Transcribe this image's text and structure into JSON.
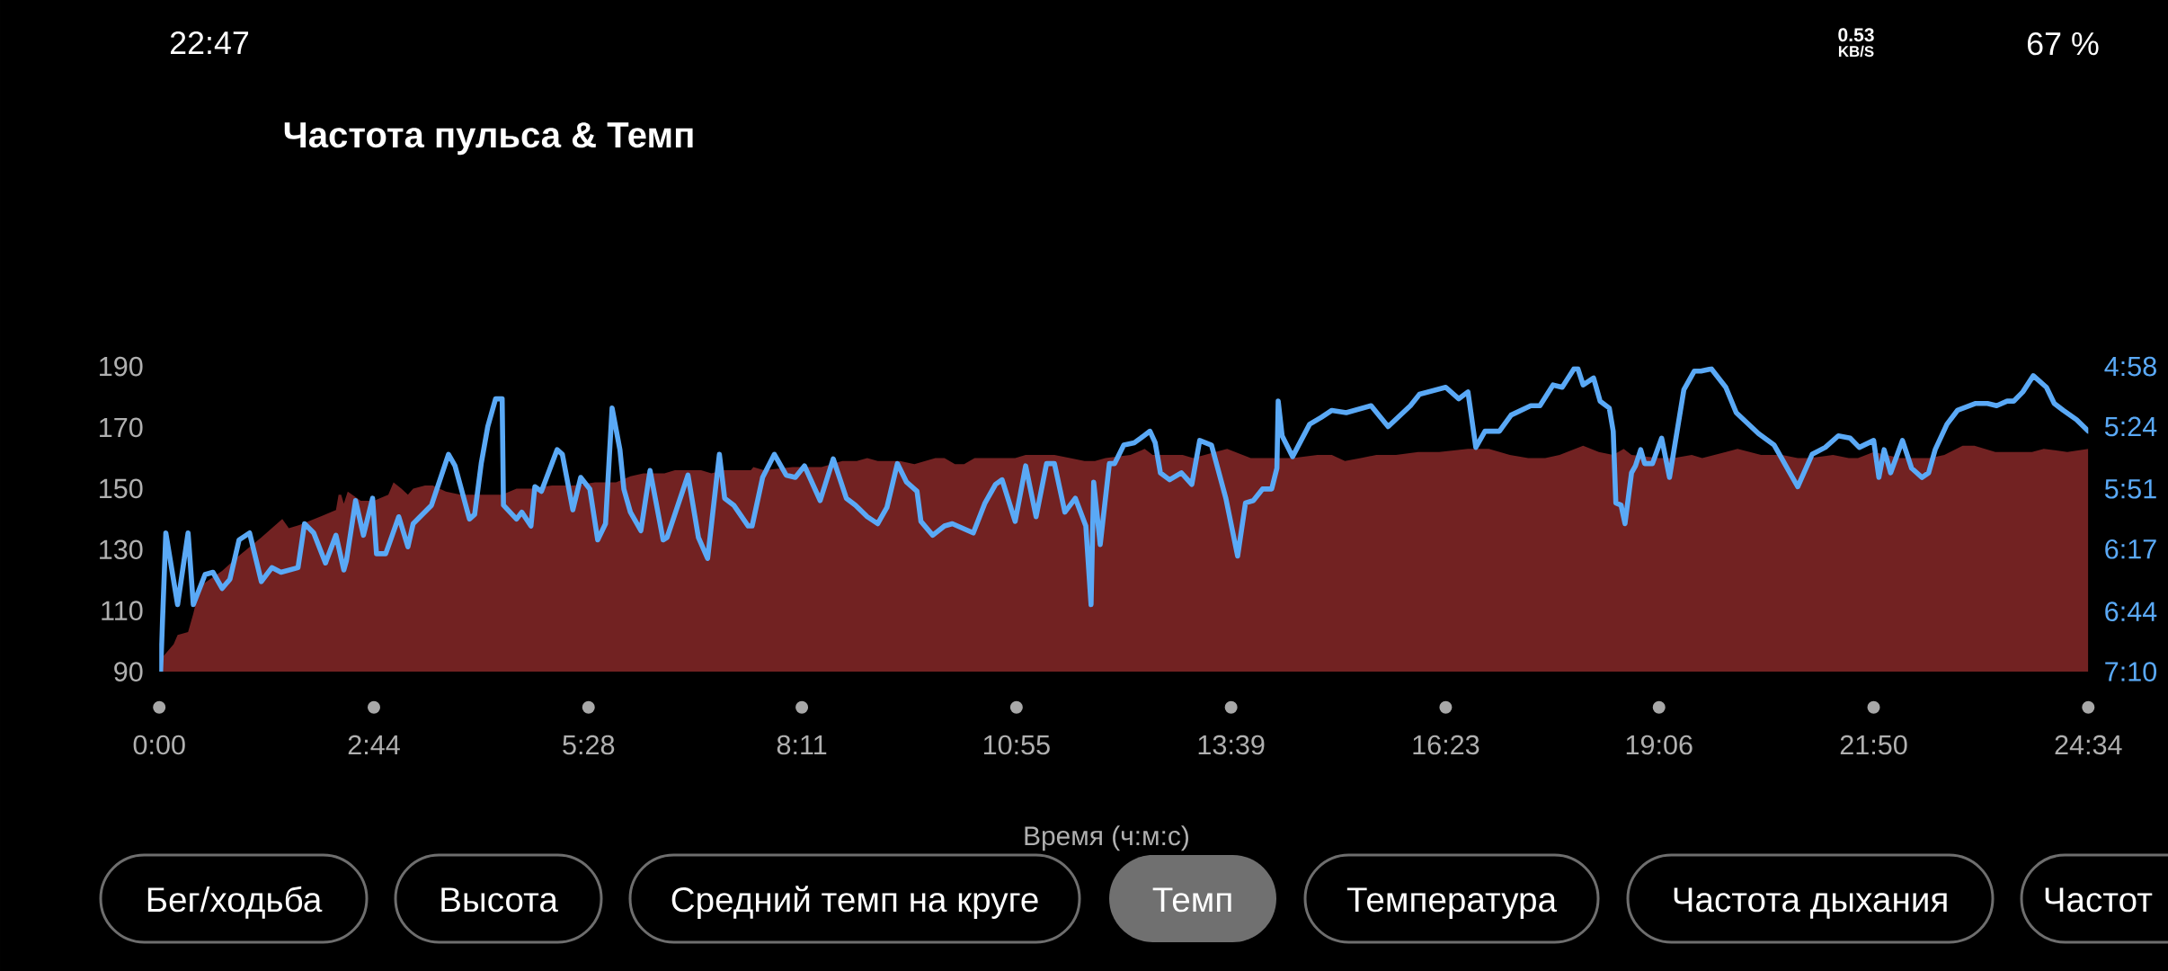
{
  "chart_data": {
    "type": "area",
    "title": "Частота пульса & Темп",
    "xlabel": "Время (ч:м:с)",
    "xlim": [
      0,
      1474
    ],
    "xticks": [
      {
        "value": 0,
        "label": "0:00"
      },
      {
        "value": 164,
        "label": "2:44"
      },
      {
        "value": 328,
        "label": "5:28"
      },
      {
        "value": 491,
        "label": "8:11"
      },
      {
        "value": 655,
        "label": "10:55"
      },
      {
        "value": 819,
        "label": "13:39"
      },
      {
        "value": 983,
        "label": "16:23"
      },
      {
        "value": 1146,
        "label": "19:06"
      },
      {
        "value": 1310,
        "label": "21:50"
      },
      {
        "value": 1474,
        "label": "24:34"
      }
    ],
    "ylim": [
      90,
      190
    ],
    "yticks": [
      90,
      110,
      130,
      150,
      170,
      190
    ],
    "y2lim": [
      430,
      298
    ],
    "y2ticks": [
      {
        "value": 298,
        "label": "4:58"
      },
      {
        "value": 324,
        "label": "5:24"
      },
      {
        "value": 351,
        "label": "5:51"
      },
      {
        "value": 377,
        "label": "6:17"
      },
      {
        "value": 404,
        "label": "6:44"
      },
      {
        "value": 430,
        "label": "7:10"
      }
    ],
    "series": [
      {
        "color": "#722222",
        "x": [
          1,
          11,
          14,
          22,
          26,
          31,
          48,
          61,
          78,
          94,
          99,
          107,
          124,
          135,
          137,
          139,
          141,
          144,
          154,
          164,
          175,
          179,
          185,
          190,
          194,
          203,
          209,
          219,
          230,
          246,
          262,
          273,
          284,
          300,
          317,
          333,
          349,
          360,
          370,
          386,
          394,
          414,
          422,
          430,
          452,
          454,
          462,
          484,
          495,
          506,
          522,
          533,
          541,
          549,
          566,
          577,
          593,
          600,
          608,
          615,
          623,
          642,
          654,
          662,
          669,
          684,
          696,
          707,
          715,
          723,
          742,
          753,
          759,
          771,
          782,
          790,
          807,
          816,
          834,
          853,
          866,
          885,
          896,
          906,
          918,
          930,
          945,
          962,
          978,
          1000,
          1016,
          1032,
          1046,
          1059,
          1070,
          1088,
          1100,
          1111,
          1119,
          1125,
          1146,
          1157,
          1171,
          1179,
          1197,
          1206,
          1224,
          1240,
          1252,
          1261,
          1279,
          1291,
          1298,
          1310,
          1330,
          1353,
          1364,
          1378,
          1387,
          1403,
          1431,
          1440,
          1458,
          1474
        ],
        "values": [
          94,
          99,
          102,
          103,
          109,
          118,
          123,
          128,
          134,
          140,
          137,
          138,
          141,
          143,
          148,
          148,
          145,
          149,
          146,
          146,
          148,
          152,
          150,
          148,
          150,
          151,
          151,
          149,
          148,
          148,
          148,
          150,
          150,
          151,
          151,
          152,
          152,
          154,
          155,
          155,
          156,
          156,
          155,
          156,
          156,
          157,
          156,
          157,
          157,
          157,
          159,
          159,
          160,
          159,
          159,
          158,
          160,
          160,
          158,
          158,
          160,
          160,
          160,
          161,
          161,
          161,
          160,
          159,
          159,
          160,
          161,
          163,
          161,
          161,
          161,
          160,
          162,
          163,
          160,
          160,
          160,
          161,
          161,
          159,
          160,
          161,
          161,
          162,
          162,
          163,
          163,
          161,
          160,
          160,
          161,
          164,
          162,
          161,
          163,
          161,
          160,
          160,
          161,
          160,
          162,
          163,
          161,
          161,
          160,
          160,
          161,
          160,
          160,
          162,
          160,
          160,
          161,
          164,
          164,
          162,
          162,
          163,
          162,
          163
        ]
      },
      {
        "type": "line",
        "axis": "y2",
        "color": "#5aa9f6",
        "x": [
          1,
          5,
          14,
          22,
          26,
          35,
          41,
          48,
          54,
          61,
          69,
          78,
          86,
          93,
          106,
          111,
          118,
          127,
          135,
          141,
          143,
          150,
          156,
          163,
          166,
          173,
          178,
          183,
          190,
          194,
          208,
          221,
          226,
          237,
          241,
          246,
          251,
          257,
          262,
          263,
          273,
          277,
          284,
          287,
          292,
          304,
          308,
          316,
          322,
          329,
          335,
          341,
          346,
          352,
          355,
          360,
          368,
          375,
          385,
          388,
          404,
          412,
          419,
          428,
          432,
          439,
          450,
          453,
          461,
          470,
          479,
          486,
          493,
          505,
          515,
          525,
          532,
          541,
          549,
          556,
          564,
          571,
          579,
          582,
          591,
          600,
          606,
          622,
          631,
          639,
          644,
          654,
          662,
          670,
          678,
          684,
          692,
          700,
          708,
          712,
          714,
          719,
          726,
          730,
          737,
          745,
          750,
          757,
          761,
          765,
          772,
          781,
          789,
          795,
          804,
          815,
          824,
          830,
          836,
          843,
          850,
          854,
          855,
          858,
          866,
          879,
          888,
          896,
          907,
          926,
          939,
          956,
          963,
          983,
          993,
          1000,
          1006,
          1013,
          1024,
          1033,
          1048,
          1055,
          1065,
          1072,
          1081,
          1084,
          1088,
          1096,
          1101,
          1108,
          1111,
          1113,
          1117,
          1120,
          1125,
          1128,
          1132,
          1135,
          1141,
          1148,
          1154,
          1165,
          1173,
          1178,
          1186,
          1197,
          1205,
          1222,
          1234,
          1244,
          1252,
          1263,
          1273,
          1283,
          1292,
          1299,
          1310,
          1314,
          1318,
          1323,
          1332,
          1339,
          1347,
          1352,
          1357,
          1366,
          1374,
          1388,
          1397,
          1404,
          1412,
          1417,
          1424,
          1432,
          1442,
          1448,
          1455,
          1465,
          1474
        ],
        "values": [
          430,
          370,
          401,
          370,
          401,
          388,
          387,
          394,
          390,
          373,
          370,
          391,
          385,
          387,
          385,
          366,
          370,
          383,
          371,
          386,
          382,
          356,
          371,
          355,
          379,
          379,
          371,
          363,
          376,
          366,
          358,
          336,
          341,
          364,
          362,
          340,
          324,
          312,
          312,
          358,
          364,
          361,
          367,
          350,
          352,
          334,
          336,
          360,
          346,
          351,
          373,
          366,
          316,
          334,
          351,
          361,
          369,
          343,
          373,
          372,
          345,
          372,
          381,
          336,
          355,
          358,
          367,
          367,
          346,
          336,
          345,
          346,
          341,
          356,
          338,
          355,
          358,
          363,
          366,
          359,
          340,
          348,
          352,
          365,
          371,
          367,
          366,
          370,
          357,
          349,
          347,
          365,
          341,
          363,
          340,
          340,
          361,
          355,
          367,
          401,
          348,
          375,
          340,
          340,
          332,
          331,
          329,
          326,
          331,
          344,
          347,
          344,
          349,
          330,
          332,
          355,
          380,
          357,
          356,
          351,
          351,
          342,
          313,
          328,
          337,
          323,
          320,
          317,
          318,
          315,
          324,
          315,
          310,
          307,
          312,
          309,
          333,
          326,
          326,
          319,
          315,
          315,
          306,
          307,
          299,
          299,
          306,
          303,
          313,
          316,
          326,
          357,
          358,
          366,
          344,
          341,
          334,
          340,
          340,
          329,
          346,
          308,
          300,
          300,
          299,
          307,
          318,
          327,
          332,
          342,
          350,
          336,
          333,
          328,
          329,
          333,
          330,
          346,
          334,
          344,
          330,
          342,
          346,
          344,
          334,
          323,
          317,
          314,
          314,
          315,
          313,
          313,
          309,
          302,
          307,
          314,
          317,
          321,
          326
        ]
      }
    ],
    "annotations": [
      "22:47",
      "0.53",
      "KB/S",
      "67 %",
      "Бег/ходьба",
      "Высота",
      "Средний темп на круге",
      "Темп",
      "Температура",
      "Частота дыхания",
      "Частот"
    ]
  }
}
